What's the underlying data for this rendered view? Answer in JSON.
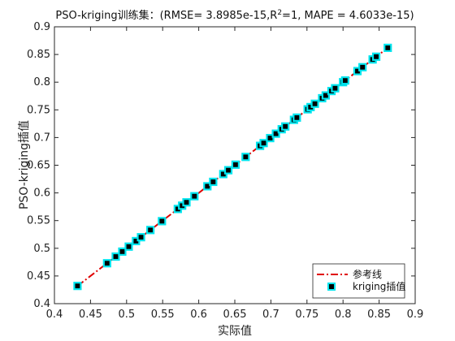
{
  "chart_data": {
    "type": "scatter",
    "title": "PSO-kriging训练集：(RMSE= 3.8985e-15,R²=1, MAPE = 4.6033e-15)",
    "xlabel": "实际值",
    "ylabel": "PSO-kriging插值",
    "xlim": [
      0.4,
      0.9
    ],
    "ylim": [
      0.4,
      0.9
    ],
    "xticks": [
      "0.4",
      "0.45",
      "0.5",
      "0.55",
      "0.6",
      "0.65",
      "0.7",
      "0.75",
      "0.8",
      "0.85",
      "0.9"
    ],
    "yticks": [
      "0.4",
      "0.45",
      "0.5",
      "0.55",
      "0.6",
      "0.65",
      "0.7",
      "0.75",
      "0.8",
      "0.85",
      "0.9"
    ],
    "grid": false,
    "legend_position": "bottom-right",
    "series": [
      {
        "name": "参考线",
        "type": "line",
        "style": "dash-dot",
        "color": "#e00000",
        "x": [
          0.432,
          0.862
        ],
        "y": [
          0.432,
          0.862
        ]
      },
      {
        "name": "kriging插值",
        "type": "scatter",
        "marker": "square",
        "color": "#000000",
        "edge_color": "#00e5ee",
        "x": [
          0.432,
          0.473,
          0.485,
          0.494,
          0.503,
          0.513,
          0.52,
          0.533,
          0.549,
          0.571,
          0.577,
          0.583,
          0.594,
          0.612,
          0.62,
          0.634,
          0.641,
          0.651,
          0.665,
          0.685,
          0.69,
          0.699,
          0.707,
          0.715,
          0.72,
          0.732,
          0.736,
          0.751,
          0.755,
          0.761,
          0.771,
          0.776,
          0.784,
          0.789,
          0.8,
          0.803,
          0.82,
          0.827,
          0.841,
          0.846,
          0.862
        ],
        "y": [
          0.432,
          0.473,
          0.485,
          0.494,
          0.503,
          0.513,
          0.52,
          0.533,
          0.549,
          0.571,
          0.577,
          0.583,
          0.594,
          0.612,
          0.62,
          0.634,
          0.641,
          0.651,
          0.665,
          0.685,
          0.69,
          0.699,
          0.707,
          0.715,
          0.72,
          0.732,
          0.736,
          0.751,
          0.755,
          0.761,
          0.771,
          0.776,
          0.784,
          0.789,
          0.8,
          0.803,
          0.82,
          0.827,
          0.841,
          0.846,
          0.862
        ]
      }
    ]
  }
}
